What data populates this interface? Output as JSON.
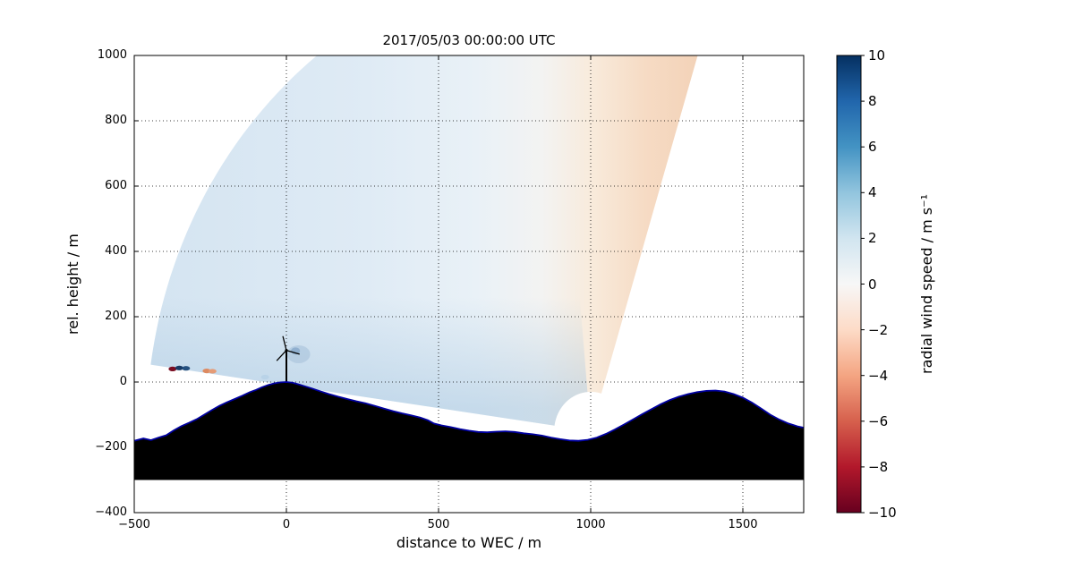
{
  "chart_data": {
    "type": "heatmap",
    "title": "2017/05/03 00:00:00 UTC",
    "xlabel": "distance to WEC / m",
    "ylabel": "rel. height / m",
    "xlim": [
      -500,
      1700
    ],
    "ylim": [
      -400,
      1000
    ],
    "xticks": [
      -500,
      0,
      500,
      1000,
      1500
    ],
    "yticks": [
      -400,
      -200,
      0,
      200,
      400,
      600,
      800,
      1000
    ],
    "grid": true,
    "colorbar": {
      "label": "radial wind speed / m s⁻¹",
      "ticks": [
        10,
        8,
        6,
        4,
        2,
        0,
        -2,
        -4,
        -6,
        -8,
        -10
      ],
      "vmin": -10,
      "vmax": 10,
      "cmap": "RdBu",
      "cmap_stops": [
        "#053061",
        "#2166ac",
        "#4393c3",
        "#92c5de",
        "#d1e5f0",
        "#f7f7f7",
        "#fddbc7",
        "#f4a582",
        "#d6604d",
        "#b2182b",
        "#67001f"
      ]
    },
    "scan": {
      "description": "Lidar RHI scan fan of radial wind speed above terrain; mostly +1 to +3 m/s (pale blue), weakly negative (pale orange) along the steepest beams on the right side",
      "origin": {
        "x": 1000,
        "y": -150
      },
      "elevation_deg": [
        73,
        172
      ],
      "range_m": [
        120,
        1460
      ],
      "positive_region_color": "#d9e8f3",
      "negative_region_color": "#f3d3b9",
      "near_turbine_patch": {
        "x": 40,
        "y": 85,
        "color": "#a6c1da"
      }
    },
    "turbine": {
      "x": 0,
      "base_height_m": 0,
      "hub_height_m": 97,
      "rotor_radius_m": 45
    },
    "terrain": {
      "fill": "#000000",
      "outline": "#0000a0",
      "base_m": -300,
      "profile": [
        [
          -500,
          -180
        ],
        [
          -470,
          -173
        ],
        [
          -445,
          -178
        ],
        [
          -420,
          -170
        ],
        [
          -395,
          -163
        ],
        [
          -370,
          -148
        ],
        [
          -345,
          -135
        ],
        [
          -320,
          -125
        ],
        [
          -295,
          -114
        ],
        [
          -270,
          -100
        ],
        [
          -245,
          -86
        ],
        [
          -220,
          -73
        ],
        [
          -195,
          -62
        ],
        [
          -170,
          -52
        ],
        [
          -145,
          -42
        ],
        [
          -120,
          -31
        ],
        [
          -100,
          -24
        ],
        [
          -80,
          -16
        ],
        [
          -60,
          -9
        ],
        [
          -40,
          -4
        ],
        [
          -20,
          -1
        ],
        [
          0,
          0
        ],
        [
          20,
          -2
        ],
        [
          40,
          -7
        ],
        [
          60,
          -13
        ],
        [
          85,
          -20
        ],
        [
          110,
          -28
        ],
        [
          140,
          -37
        ],
        [
          170,
          -45
        ],
        [
          200,
          -52
        ],
        [
          230,
          -59
        ],
        [
          260,
          -65
        ],
        [
          290,
          -73
        ],
        [
          320,
          -81
        ],
        [
          350,
          -89
        ],
        [
          380,
          -96
        ],
        [
          410,
          -102
        ],
        [
          440,
          -109
        ],
        [
          465,
          -117
        ],
        [
          485,
          -127
        ],
        [
          510,
          -133
        ],
        [
          540,
          -138
        ],
        [
          570,
          -144
        ],
        [
          600,
          -149
        ],
        [
          630,
          -153
        ],
        [
          660,
          -154
        ],
        [
          690,
          -152
        ],
        [
          720,
          -151
        ],
        [
          750,
          -153
        ],
        [
          780,
          -157
        ],
        [
          810,
          -160
        ],
        [
          840,
          -164
        ],
        [
          870,
          -170
        ],
        [
          900,
          -175
        ],
        [
          930,
          -179
        ],
        [
          960,
          -180
        ],
        [
          990,
          -177
        ],
        [
          1020,
          -170
        ],
        [
          1050,
          -159
        ],
        [
          1080,
          -145
        ],
        [
          1110,
          -130
        ],
        [
          1140,
          -114
        ],
        [
          1170,
          -98
        ],
        [
          1200,
          -83
        ],
        [
          1230,
          -68
        ],
        [
          1260,
          -55
        ],
        [
          1290,
          -45
        ],
        [
          1320,
          -37
        ],
        [
          1350,
          -31
        ],
        [
          1380,
          -27
        ],
        [
          1410,
          -26
        ],
        [
          1440,
          -29
        ],
        [
          1470,
          -37
        ],
        [
          1500,
          -48
        ],
        [
          1530,
          -63
        ],
        [
          1560,
          -81
        ],
        [
          1590,
          -100
        ],
        [
          1620,
          -115
        ],
        [
          1650,
          -127
        ],
        [
          1680,
          -136
        ],
        [
          1700,
          -140
        ]
      ]
    },
    "hard_targets": [
      {
        "x": -374,
        "y": 40,
        "color": "#7a0d22"
      },
      {
        "x": -352,
        "y": 43,
        "color": "#173a66"
      },
      {
        "x": -330,
        "y": 42,
        "color": "#24507f"
      },
      {
        "x": -262,
        "y": 34,
        "color": "#dd8a61"
      },
      {
        "x": -243,
        "y": 33,
        "color": "#e59b76"
      },
      {
        "x": -70,
        "y": 15,
        "color": "#b9d3e8"
      }
    ]
  }
}
